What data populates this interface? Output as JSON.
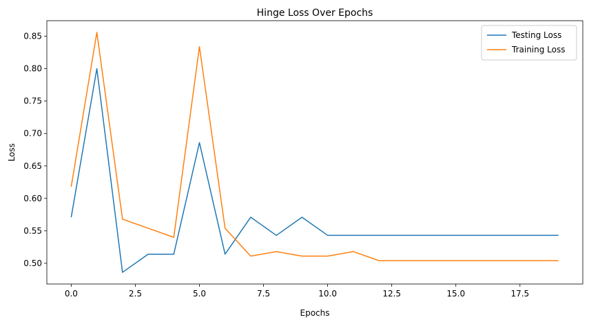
{
  "chart_data": {
    "type": "line",
    "title": "Hinge Loss Over Epochs",
    "xlabel": "Epochs",
    "ylabel": "Loss",
    "x": [
      0,
      1,
      2,
      3,
      4,
      5,
      6,
      7,
      8,
      9,
      10,
      11,
      12,
      13,
      14,
      15,
      16,
      17,
      18,
      19
    ],
    "xlim": [
      -0.95,
      19.95
    ],
    "ylim": [
      0.468,
      0.874
    ],
    "xticks": [
      0,
      2.5,
      5,
      7.5,
      10,
      12.5,
      15,
      17.5
    ],
    "xtick_labels": [
      "0.0",
      "2.5",
      "5.0",
      "7.5",
      "10.0",
      "12.5",
      "15.0",
      "17.5"
    ],
    "yticks": [
      0.5,
      0.55,
      0.6,
      0.65,
      0.7,
      0.75,
      0.8,
      0.85
    ],
    "ytick_labels": [
      "0.50",
      "0.55",
      "0.60",
      "0.65",
      "0.70",
      "0.75",
      "0.80",
      "0.85"
    ],
    "grid": false,
    "legend_position": "top-right",
    "series": [
      {
        "name": "Testing Loss",
        "color": "#1f77b4",
        "values": [
          0.571,
          0.8,
          0.486,
          0.514,
          0.514,
          0.686,
          0.514,
          0.571,
          0.543,
          0.571,
          0.543,
          0.543,
          0.543,
          0.543,
          0.543,
          0.543,
          0.543,
          0.543,
          0.543,
          0.543
        ]
      },
      {
        "name": "Training Loss",
        "color": "#ff7f0e",
        "values": [
          0.618,
          0.856,
          0.568,
          0.554,
          0.54,
          0.834,
          0.554,
          0.511,
          0.518,
          0.511,
          0.511,
          0.518,
          0.504,
          0.504,
          0.504,
          0.504,
          0.504,
          0.504,
          0.504,
          0.504
        ]
      }
    ]
  }
}
